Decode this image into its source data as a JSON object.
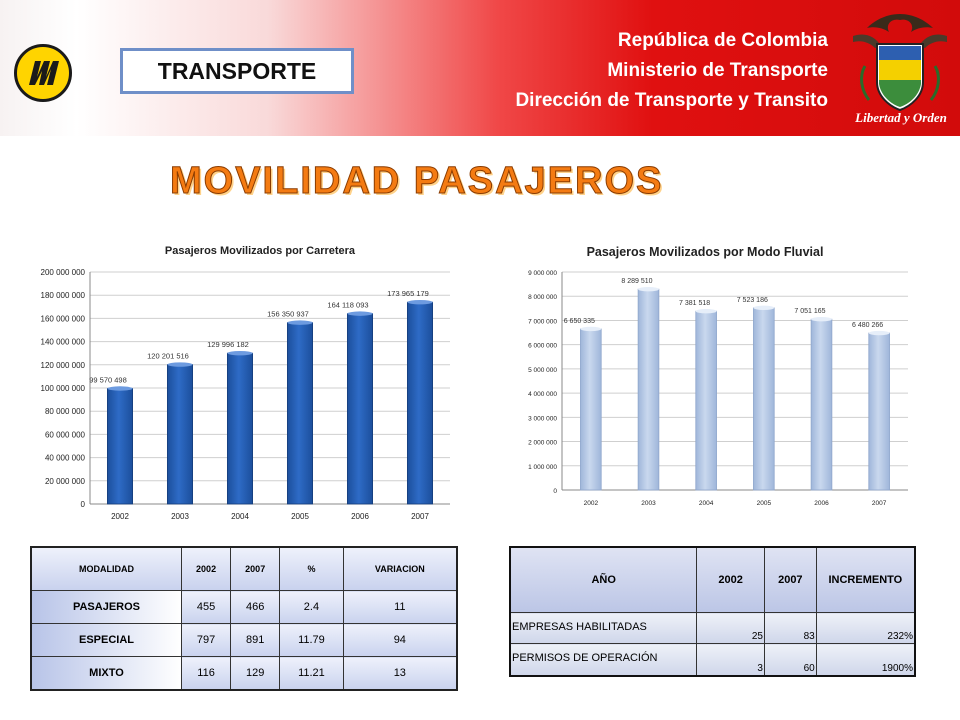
{
  "header": {
    "section_label": "TRANSPORTE",
    "line1": "República de Colombia",
    "line2": "Ministerio de Transporte",
    "line3": "Dirección de Transporte y Transito",
    "motto": "Libertad y Orden",
    "brand_color": "#d20b0b",
    "logo_color": "#ffd400"
  },
  "page_title": "MOVILIDAD PASAJEROS",
  "chart_data": [
    {
      "type": "bar",
      "title": "Pasajeros Movilizados por Carretera",
      "categories": [
        "2002",
        "2003",
        "2004",
        "2005",
        "2006",
        "2007"
      ],
      "values": [
        99570498,
        120201516,
        129996182,
        156350937,
        164118093,
        173965179
      ],
      "value_labels": [
        "99 570 498",
        "120 201 516",
        "129 996 182",
        "156 350 937",
        "164 118 093",
        "173 965 179"
      ],
      "yticks": [
        "0",
        "20 000 000",
        "40 000 000",
        "60 000 000",
        "80 000 000",
        "100 000 000",
        "120 000 000",
        "140 000 000",
        "160 000 000",
        "180 000 000",
        "200 000 000"
      ],
      "ylim": [
        0,
        200000000
      ],
      "grid": true,
      "bar_color": "#2e6bc6"
    },
    {
      "type": "bar",
      "title": "Pasajeros Movilizados por Modo Fluvial",
      "categories": [
        "2002",
        "2003",
        "2004",
        "2005",
        "2006",
        "2007"
      ],
      "values": [
        6650335,
        8289510,
        7381518,
        7523186,
        7051165,
        6480266
      ],
      "value_labels": [
        "6 650 335",
        "8 289 510",
        "7 381 518",
        "7 523 186",
        "7 051 165",
        "6 480 266"
      ],
      "yticks": [
        "0",
        "1 000 000",
        "2 000 000",
        "3 000 000",
        "4 000 000",
        "5 000 000",
        "6 000 000",
        "7 000 000",
        "8 000 000",
        "9 000 000"
      ],
      "ylim": [
        0,
        9000000
      ],
      "grid": true,
      "bar_color": "#c9d8ee"
    }
  ],
  "table_modalidad": {
    "headers": [
      "MODALIDAD",
      "2002",
      "2007",
      "%",
      "VARIACION"
    ],
    "rows": [
      [
        "PASAJEROS",
        "455",
        "466",
        "2.4",
        "11"
      ],
      [
        "ESPECIAL",
        "797",
        "891",
        "11.79",
        "94"
      ],
      [
        "MIXTO",
        "116",
        "129",
        "11.21",
        "13"
      ]
    ]
  },
  "table_empresas": {
    "headers": [
      "AÑO",
      "2002",
      "2007",
      "INCREMENTO"
    ],
    "rows": [
      [
        "EMPRESAS HABILITADAS",
        "25",
        "83",
        "232%"
      ],
      [
        "PERMISOS DE OPERACIÓN",
        "3",
        "60",
        "1900%"
      ]
    ]
  }
}
